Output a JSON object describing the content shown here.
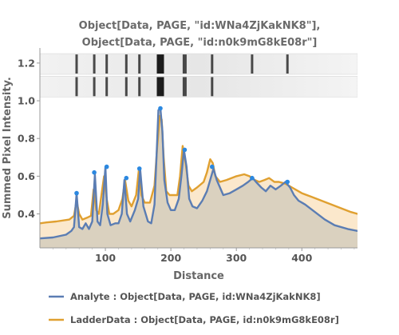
{
  "chart_data": {
    "type": "line",
    "title_lines": [
      "Object[Data, PAGE, \"id:WNa4ZjKakNK8\"],",
      "Object[Data, PAGE, \"id:n0k9mG8kE08r\"]"
    ],
    "xlabel": "Distance",
    "ylabel": "Summed Pixel Intensity.",
    "xlim": [
      0,
      485
    ],
    "ylim": [
      0.22,
      1.28
    ],
    "x_ticks": [
      100,
      200,
      300,
      400
    ],
    "x_tick_labels": [
      "100",
      "200",
      "300",
      "400"
    ],
    "y_ticks": [
      0.4,
      0.6,
      0.8,
      1.0,
      1.2
    ],
    "y_tick_labels": [
      "0.4",
      "0.6",
      "0.8",
      "1.0",
      "1.2"
    ],
    "legend_placement": "bottom",
    "series": [
      {
        "name": "Analyte : Object[Data, PAGE, id:WNa4ZjKakNK8]",
        "color": "#5b7db3",
        "fill": "#d4ccbc",
        "x": [
          0,
          20,
          40,
          48,
          52,
          56,
          60,
          65,
          70,
          75,
          80,
          84,
          88,
          92,
          96,
          100,
          103,
          108,
          115,
          120,
          125,
          129,
          133,
          138,
          145,
          150,
          153,
          158,
          165,
          170,
          175,
          178,
          181,
          184,
          187,
          190,
          195,
          200,
          206,
          212,
          216,
          220,
          224,
          228,
          233,
          240,
          248,
          255,
          260,
          265,
          270,
          280,
          290,
          300,
          310,
          318,
          325,
          330,
          338,
          345,
          352,
          360,
          368,
          375,
          382,
          388,
          395,
          405,
          420,
          435,
          450,
          470,
          485
        ],
        "y": [
          0.27,
          0.275,
          0.29,
          0.31,
          0.33,
          0.51,
          0.33,
          0.32,
          0.35,
          0.32,
          0.36,
          0.61,
          0.36,
          0.34,
          0.45,
          0.65,
          0.4,
          0.34,
          0.35,
          0.35,
          0.4,
          0.58,
          0.4,
          0.36,
          0.42,
          0.48,
          0.64,
          0.44,
          0.36,
          0.35,
          0.45,
          0.7,
          0.95,
          0.96,
          0.84,
          0.58,
          0.46,
          0.42,
          0.42,
          0.48,
          0.6,
          0.74,
          0.65,
          0.48,
          0.44,
          0.43,
          0.47,
          0.52,
          0.58,
          0.64,
          0.58,
          0.5,
          0.51,
          0.53,
          0.55,
          0.57,
          0.59,
          0.57,
          0.54,
          0.52,
          0.55,
          0.53,
          0.55,
          0.57,
          0.54,
          0.5,
          0.47,
          0.45,
          0.41,
          0.37,
          0.34,
          0.32,
          0.31
        ]
      },
      {
        "name": "LadderData : Object[Data, PAGE, id:n0k9mG8kE08r]",
        "color": "#e0a030",
        "fill": "#fbe8cc",
        "x": [
          0,
          10,
          25,
          45,
          52,
          56,
          60,
          65,
          72,
          78,
          82,
          86,
          90,
          94,
          98,
          102,
          106,
          112,
          120,
          126,
          130,
          135,
          140,
          147,
          151,
          155,
          160,
          168,
          175,
          179,
          183,
          186,
          189,
          193,
          198,
          204,
          210,
          214,
          218,
          222,
          227,
          232,
          240,
          250,
          255,
          260,
          264,
          268,
          275,
          285,
          300,
          312,
          320,
          328,
          335,
          343,
          350,
          358,
          365,
          375,
          385,
          400,
          415,
          430,
          445,
          460,
          475,
          485
        ],
        "y": [
          0.35,
          0.355,
          0.36,
          0.37,
          0.39,
          0.47,
          0.4,
          0.37,
          0.38,
          0.39,
          0.53,
          0.42,
          0.4,
          0.5,
          0.6,
          0.48,
          0.4,
          0.4,
          0.42,
          0.48,
          0.58,
          0.47,
          0.44,
          0.5,
          0.63,
          0.5,
          0.46,
          0.46,
          0.55,
          0.75,
          0.92,
          0.9,
          0.7,
          0.52,
          0.5,
          0.5,
          0.5,
          0.6,
          0.76,
          0.68,
          0.55,
          0.52,
          0.54,
          0.57,
          0.62,
          0.69,
          0.67,
          0.6,
          0.57,
          0.58,
          0.6,
          0.61,
          0.6,
          0.58,
          0.57,
          0.58,
          0.59,
          0.57,
          0.57,
          0.56,
          0.54,
          0.51,
          0.49,
          0.47,
          0.45,
          0.43,
          0.41,
          0.4
        ]
      }
    ],
    "markers": {
      "color": "#2b88e0",
      "x": [
        56,
        83,
        102,
        132,
        152,
        184,
        221,
        263,
        324,
        378
      ],
      "y": [
        0.51,
        0.62,
        0.65,
        0.59,
        0.64,
        0.96,
        0.74,
        0.65,
        0.59,
        0.57
      ]
    },
    "gel_lanes": [
      {
        "name": "Analyte",
        "y_range": [
          1.14,
          1.25
        ],
        "bands": [
          56,
          83,
          102,
          132,
          152,
          184,
          221,
          263,
          324,
          378
        ]
      },
      {
        "name": "LadderData",
        "y_range": [
          1.02,
          1.13
        ],
        "bands": [
          56,
          83,
          102,
          132,
          152,
          184,
          221,
          263
        ]
      }
    ]
  }
}
